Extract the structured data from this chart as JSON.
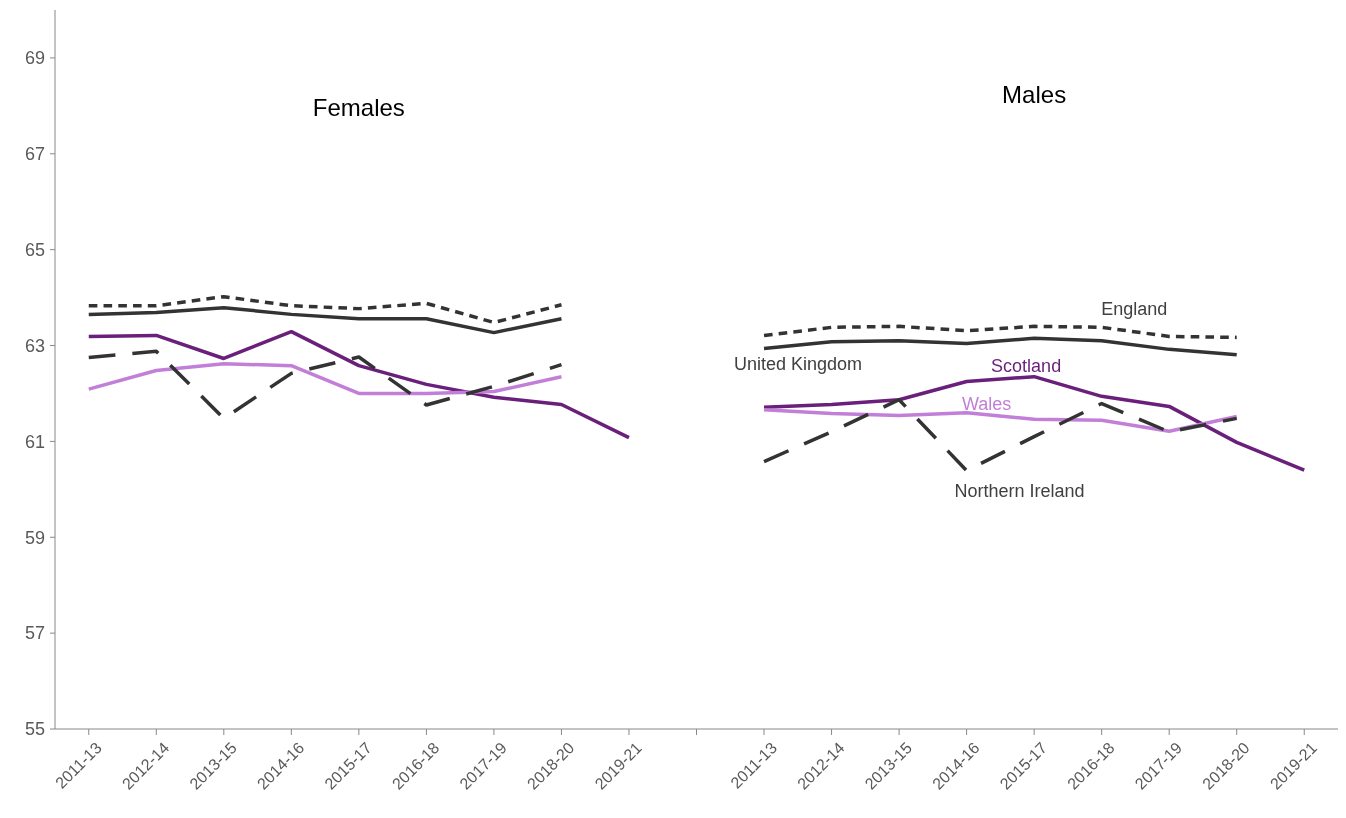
{
  "chart_data": {
    "type": "line",
    "categories": [
      "2011-13",
      "2012-14",
      "2013-15",
      "2014-16",
      "2015-17",
      "2016-18",
      "2017-19",
      "2018-20",
      "2019-21",
      null,
      "2011-13",
      "2012-14",
      "2013-15",
      "2014-16",
      "2015-17",
      "2016-18",
      "2017-19",
      "2018-20",
      "2019-21"
    ],
    "ylim": [
      55,
      70
    ],
    "yticks": [
      55,
      57,
      59,
      61,
      63,
      65,
      67,
      69
    ],
    "grid": false,
    "marker": "none",
    "annotations": [
      "Females",
      "Males"
    ],
    "series": [
      {
        "name": "England",
        "color": "#333333",
        "line_style": "dotted",
        "values": [
          63.83,
          63.83,
          64.02,
          63.83,
          63.77,
          63.88,
          63.48,
          63.85,
          null,
          null,
          63.21,
          63.38,
          63.4,
          63.31,
          63.4,
          63.38,
          63.19,
          63.17,
          null
        ]
      },
      {
        "name": "United Kingdom",
        "color": "#333333",
        "line_style": "solid",
        "values": [
          63.65,
          63.69,
          63.79,
          63.65,
          63.56,
          63.56,
          63.27,
          63.56,
          null,
          null,
          62.94,
          63.08,
          63.1,
          63.04,
          63.15,
          63.1,
          62.92,
          62.81,
          null
        ]
      },
      {
        "name": "Scotland",
        "color": "#6a1f7a",
        "line_style": "solid",
        "values": [
          63.19,
          63.21,
          62.73,
          63.29,
          62.58,
          62.19,
          61.92,
          61.77,
          61.08,
          null,
          61.71,
          61.77,
          61.87,
          62.25,
          62.35,
          61.94,
          61.73,
          60.98,
          60.4
        ]
      },
      {
        "name": "Wales",
        "color": "#c27fd8",
        "line_style": "solid",
        "values": [
          62.09,
          62.48,
          62.62,
          62.58,
          62.0,
          62.0,
          62.04,
          62.35,
          null,
          null,
          61.66,
          61.58,
          61.54,
          61.6,
          61.46,
          61.44,
          61.21,
          61.52,
          null
        ]
      },
      {
        "name": "Northern Ireland",
        "color": "#333333",
        "line_style": "dashed",
        "values": [
          62.75,
          62.88,
          61.48,
          62.42,
          62.76,
          61.76,
          62.15,
          62.6,
          null,
          null,
          60.58,
          61.2,
          61.87,
          60.39,
          61.1,
          61.79,
          61.2,
          61.48,
          null
        ]
      }
    ]
  }
}
